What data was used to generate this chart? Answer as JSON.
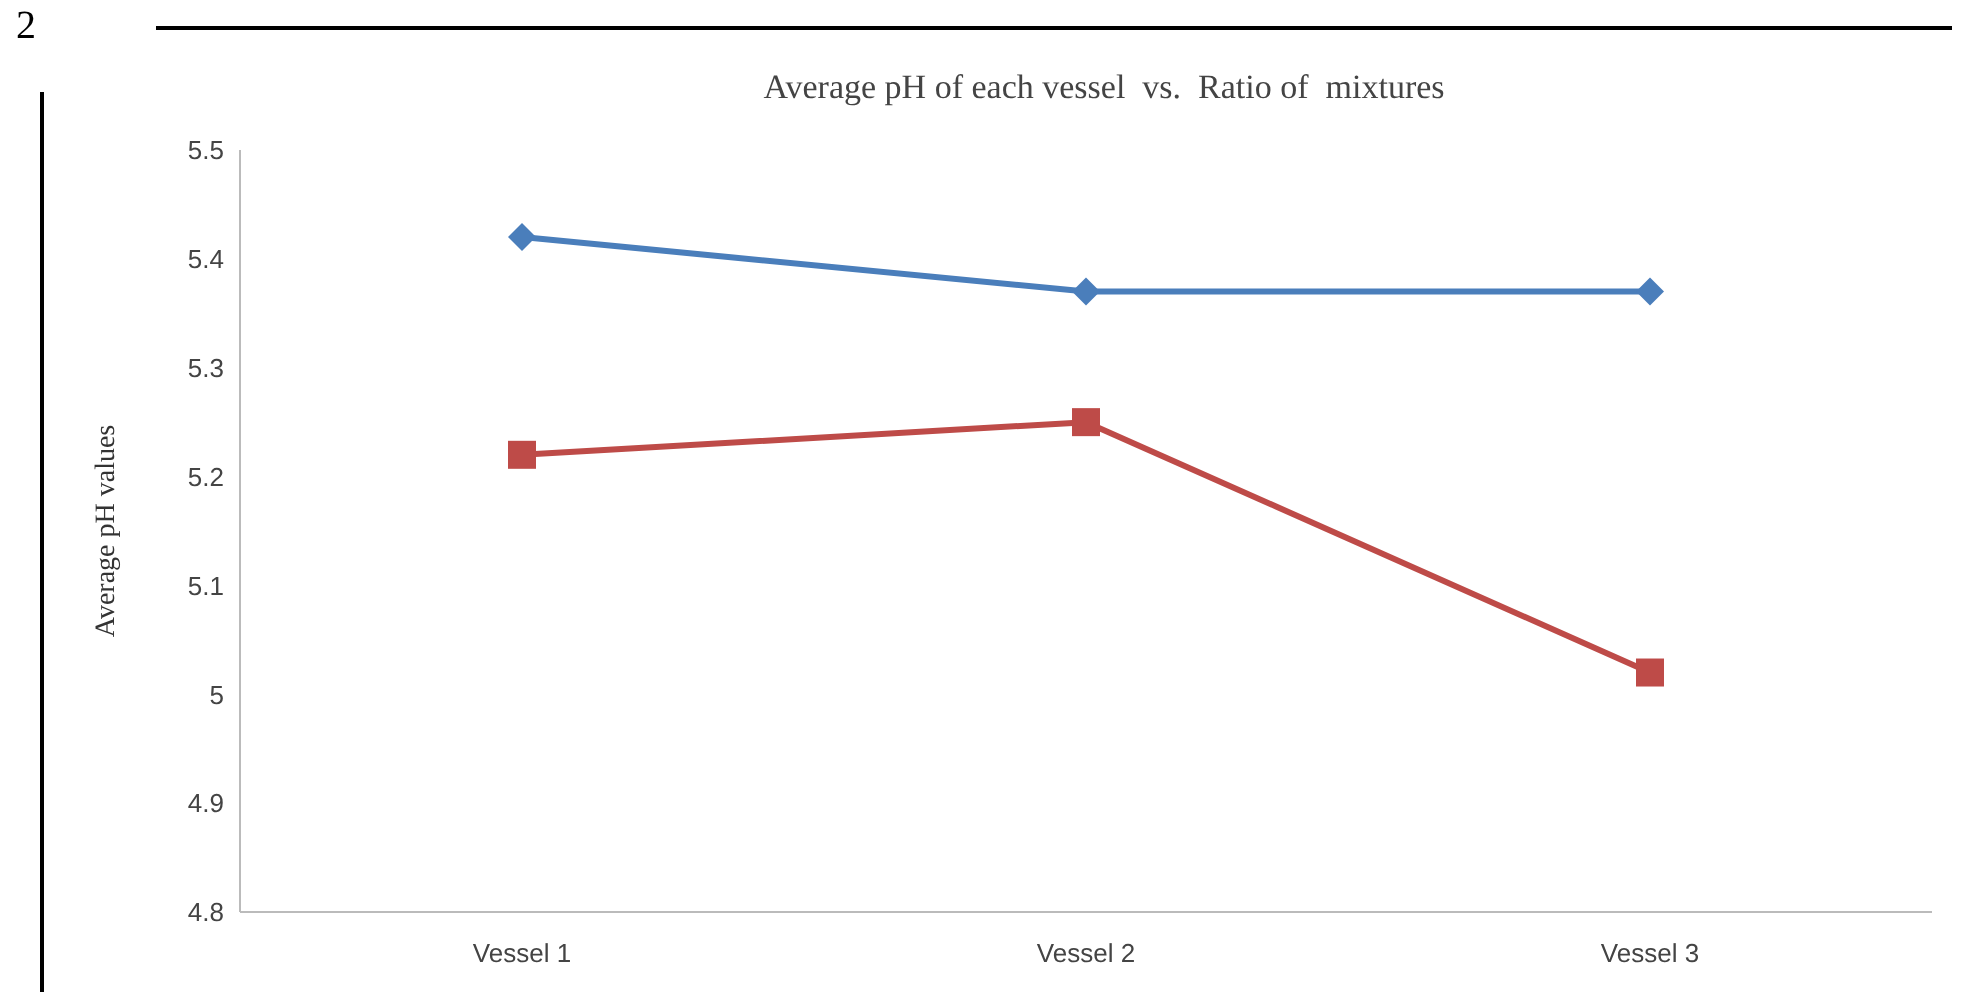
{
  "chart_data": {
    "type": "line",
    "title": "Average pH of each vessel  vs.  Ratio of  mixtures",
    "ylabel": "Average pH values",
    "annotations": [
      "2"
    ],
    "categories": [
      "Vessel 1",
      "Vessel 2",
      "Vessel 3"
    ],
    "series": [
      {
        "color": "#4a7ebb",
        "values": [
          5.42,
          5.37,
          5.37
        ],
        "marker": "diamond"
      },
      {
        "color": "#be4b48",
        "values": [
          5.22,
          5.25,
          5.02
        ],
        "marker": "square"
      }
    ],
    "ylim": [
      4.8,
      5.5
    ],
    "yticks": [
      4.8,
      4.9,
      5,
      5.1,
      5.2,
      5.3,
      5.4,
      5.5
    ],
    "grid": false,
    "legend": false
  }
}
